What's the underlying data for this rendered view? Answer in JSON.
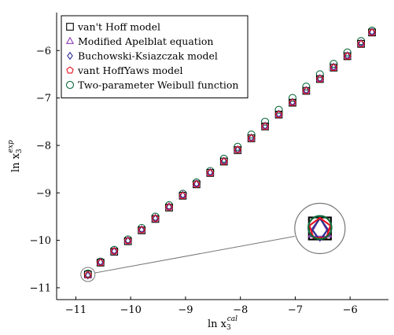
{
  "chart_data": {
    "type": "scatter",
    "title": "",
    "xlabel": {
      "base": "ln x",
      "sub": "3",
      "sup": "cal"
    },
    "ylabel": {
      "base": "ln x",
      "sub": "3",
      "sup": "exp"
    },
    "xlim": [
      -11.35,
      -5.3
    ],
    "ylim": [
      -11.25,
      -5.2
    ],
    "xticks": [
      -11,
      -10,
      -9,
      -8,
      -7,
      -6
    ],
    "yticks": [
      -11,
      -10,
      -9,
      -8,
      -7,
      -6
    ],
    "tick_labels_x": [
      "−11",
      "−10",
      "−9",
      "−8",
      "−7",
      "−6"
    ],
    "tick_labels_y": [
      "−11",
      "−10",
      "−9",
      "−8",
      "−7",
      "−6"
    ],
    "grid": false,
    "legend_position": "top-left",
    "zoom_inset": {
      "target": [
        -10.78,
        -10.72
      ],
      "center": [
        -6.55,
        -9.75
      ]
    },
    "x": [
      -10.78,
      -10.55,
      -10.3,
      -10.05,
      -9.8,
      -9.55,
      -9.3,
      -9.05,
      -8.8,
      -8.55,
      -8.3,
      -8.05,
      -7.8,
      -7.55,
      -7.3,
      -7.05,
      -6.8,
      -6.55,
      -6.3,
      -6.05,
      -5.8,
      -5.6
    ],
    "series": [
      {
        "name": "van't Hoff model",
        "marker": "square",
        "color": "#000000",
        "values": [
          -10.72,
          -10.47,
          -10.24,
          -10.02,
          -9.79,
          -9.55,
          -9.31,
          -9.06,
          -8.82,
          -8.58,
          -8.34,
          -8.1,
          -7.85,
          -7.6,
          -7.35,
          -7.1,
          -6.85,
          -6.6,
          -6.36,
          -6.12,
          -5.86,
          -5.62
        ]
      },
      {
        "name": "Modified Apelblat equation",
        "marker": "triangle",
        "color": "#8e3fb5",
        "values": [
          -10.74,
          -10.46,
          -10.22,
          -10.0,
          -9.77,
          -9.53,
          -9.29,
          -9.05,
          -8.81,
          -8.57,
          -8.33,
          -8.09,
          -7.84,
          -7.59,
          -7.34,
          -7.09,
          -6.84,
          -6.59,
          -6.35,
          -6.11,
          -5.85,
          -5.61
        ]
      },
      {
        "name": "Buchowski-Ksiazczak model",
        "marker": "diamond",
        "color": "#2d2f8f",
        "values": [
          -10.74,
          -10.46,
          -10.23,
          -10.01,
          -9.78,
          -9.54,
          -9.3,
          -9.05,
          -8.81,
          -8.57,
          -8.33,
          -8.09,
          -7.84,
          -7.59,
          -7.34,
          -7.09,
          -6.84,
          -6.59,
          -6.35,
          -6.11,
          -5.85,
          -5.61
        ]
      },
      {
        "name": "vant HoffYaws model",
        "marker": "pentagon",
        "color": "#e8101e",
        "values": [
          -10.73,
          -10.47,
          -10.23,
          -10.01,
          -9.78,
          -9.54,
          -9.3,
          -9.06,
          -8.82,
          -8.58,
          -8.34,
          -8.09,
          -7.85,
          -7.6,
          -7.35,
          -7.1,
          -6.85,
          -6.6,
          -6.36,
          -6.12,
          -5.86,
          -5.62
        ]
      },
      {
        "name": "Two-parameter Weibull function",
        "marker": "circle",
        "color": "#0d6b3c",
        "values": [
          -10.7,
          -10.45,
          -10.2,
          -9.98,
          -9.74,
          -9.5,
          -9.26,
          -9.02,
          -8.78,
          -8.54,
          -8.28,
          -8.03,
          -7.77,
          -7.5,
          -7.25,
          -7.0,
          -6.76,
          -6.5,
          -6.28,
          -6.04,
          -5.8,
          -5.58
        ]
      }
    ]
  }
}
